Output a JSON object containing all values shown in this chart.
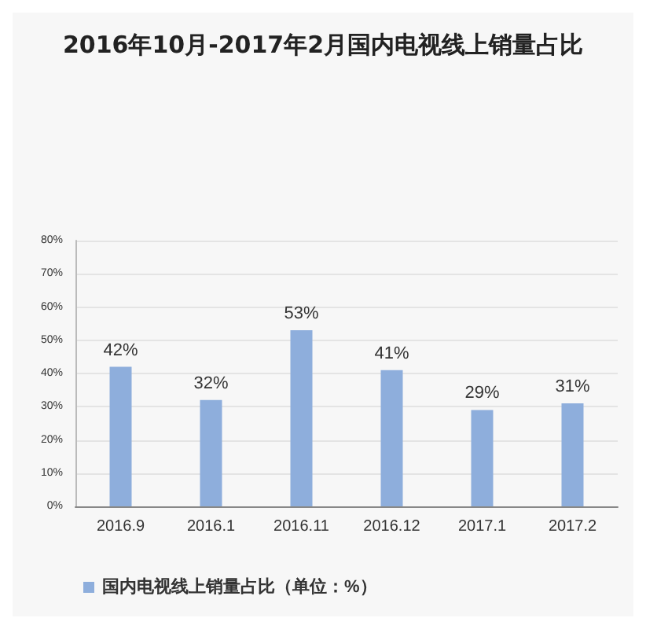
{
  "chart_data": {
    "type": "bar",
    "title": "2016年10月-2017年2月国内电视线上销量占比",
    "categories": [
      "2016.9",
      "2016.1",
      "2016.11",
      "2016.12",
      "2017.1",
      "2017.2"
    ],
    "series": [
      {
        "name": "国内电视线上销量占比（单位：%）",
        "color": "#8eaedc",
        "values": [
          42,
          32,
          53,
          41,
          29,
          31
        ],
        "value_labels": [
          "42%",
          "32%",
          "53%",
          "41%",
          "29%",
          "31%"
        ]
      }
    ],
    "ylim": [
      0,
      80
    ],
    "yticks": [
      {
        "value": 0,
        "label": "0%"
      },
      {
        "value": 10,
        "label": "10%"
      },
      {
        "value": 20,
        "label": "20%"
      },
      {
        "value": 30,
        "label": "30%"
      },
      {
        "value": 40,
        "label": "40%"
      },
      {
        "value": 50,
        "label": "50%"
      },
      {
        "value": 60,
        "label": "60%"
      },
      {
        "value": 70,
        "label": "70%"
      },
      {
        "value": 80,
        "label": "80%"
      }
    ],
    "grid": "y",
    "legend": "bottom left"
  }
}
